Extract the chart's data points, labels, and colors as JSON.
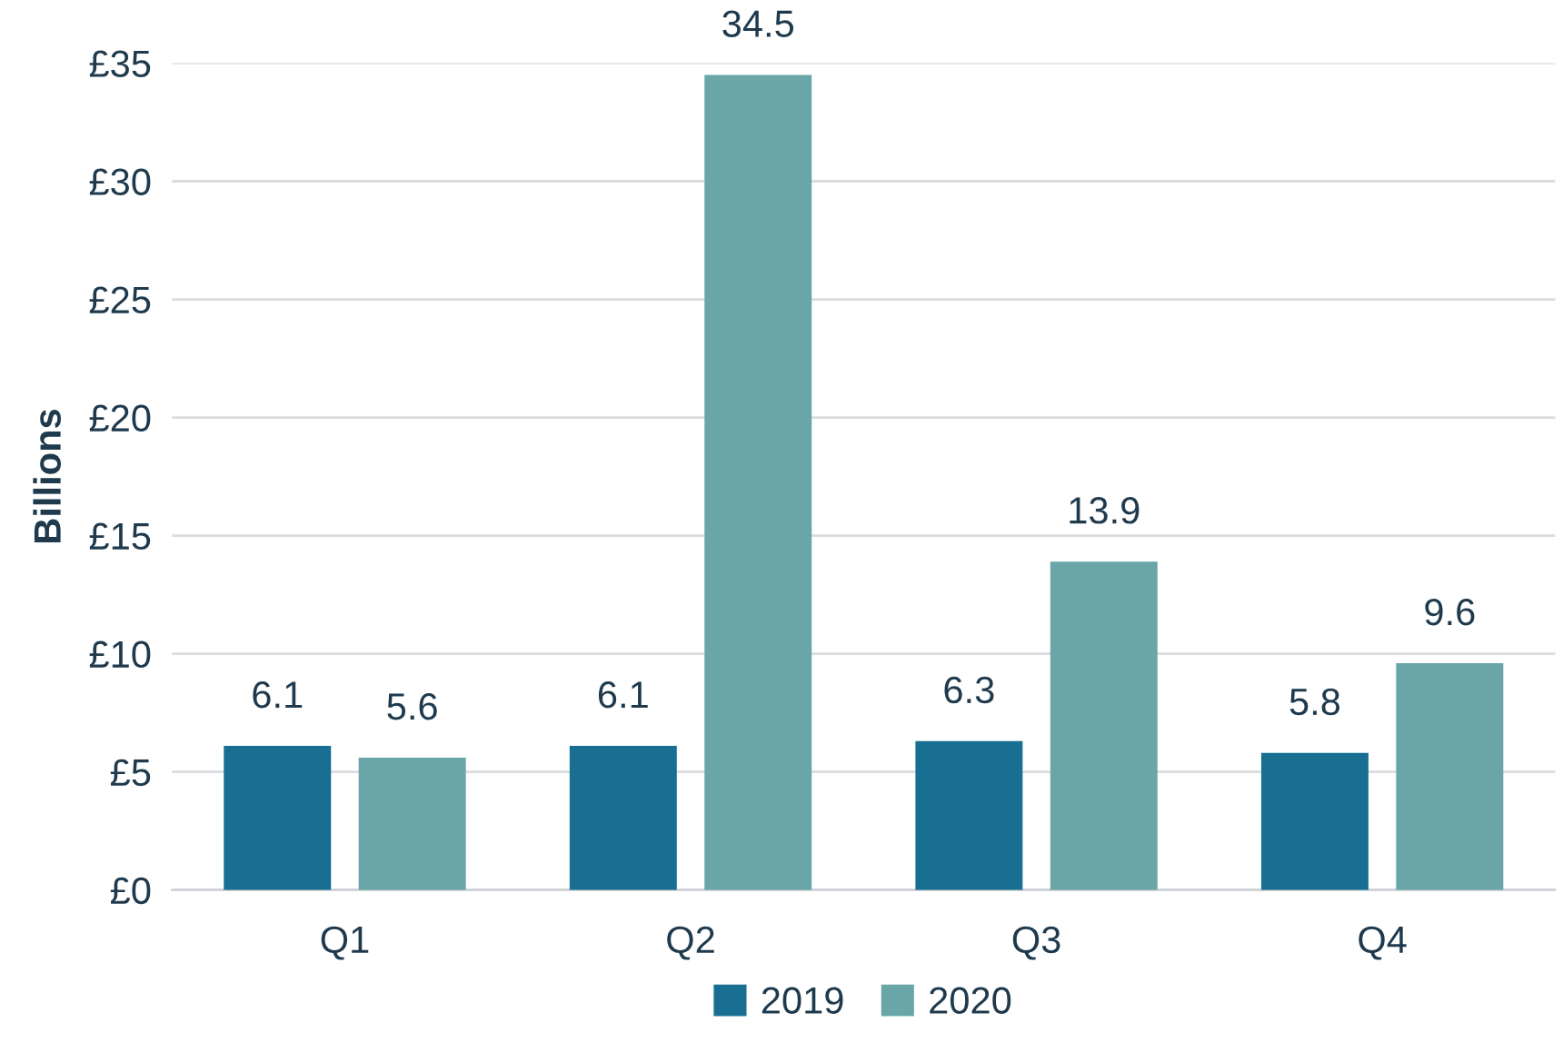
{
  "chart_data": {
    "type": "bar",
    "ylabel": "Billions",
    "categories": [
      "Q1",
      "Q2",
      "Q3",
      "Q4"
    ],
    "series": [
      {
        "name": "2019",
        "color": "#186f91",
        "values": [
          6.1,
          6.1,
          6.3,
          5.8
        ]
      },
      {
        "name": "2020",
        "color": "#6aa5a8",
        "values": [
          5.6,
          34.5,
          13.9,
          9.6
        ]
      }
    ],
    "ylim": [
      0,
      35
    ],
    "yticks": [
      {
        "value": 0,
        "label": "£0"
      },
      {
        "value": 5,
        "label": "£5"
      },
      {
        "value": 10,
        "label": "£10"
      },
      {
        "value": 15,
        "label": "£15"
      },
      {
        "value": 20,
        "label": "£20"
      },
      {
        "value": 25,
        "label": "£25"
      },
      {
        "value": 30,
        "label": "£30"
      },
      {
        "value": 35,
        "label": "£35"
      }
    ],
    "grid": "y",
    "legend": "bottom",
    "data_labels": true
  }
}
